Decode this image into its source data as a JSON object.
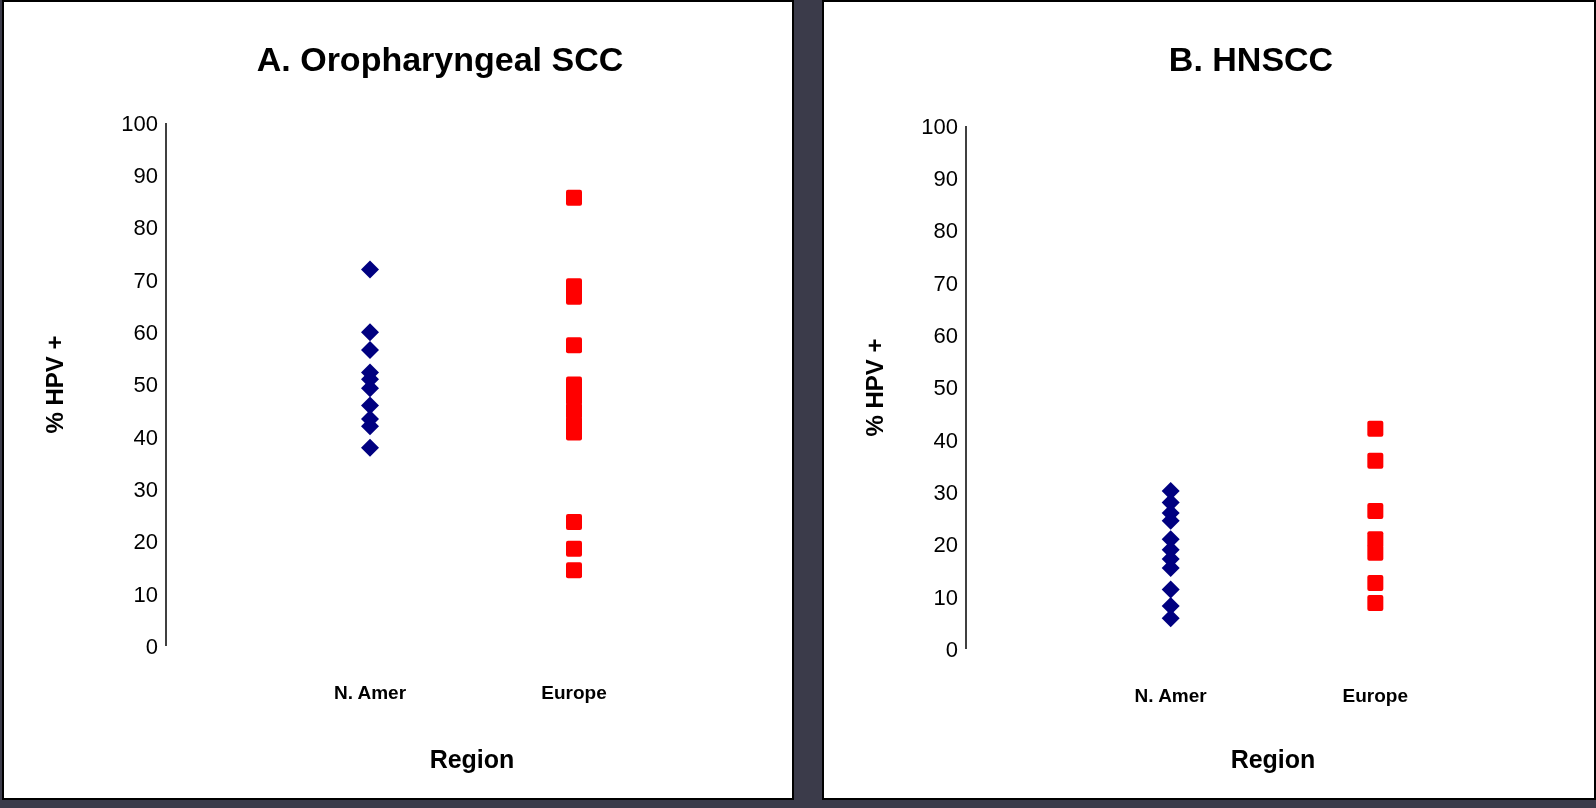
{
  "chart_data": [
    {
      "type": "scatter",
      "title": "A. Oropharyngeal SCC",
      "xlabel": "Region",
      "ylabel": "% HPV +",
      "categories": [
        "N. Amer",
        "Europe"
      ],
      "ylim": [
        0,
        100
      ],
      "yticks": [
        0,
        10,
        20,
        30,
        40,
        50,
        60,
        70,
        80,
        90,
        100
      ],
      "series": [
        {
          "color": "#000080",
          "marker": "diamond",
          "x": [
            "N. Amer",
            "N. Amer",
            "N. Amer",
            "N. Amer",
            "N. Amer",
            "N. Amer",
            "N. Amer",
            "N. Amer",
            "N. Amer",
            "N. Amer"
          ],
          "values": [
            72,
            60,
            56.6,
            52.3,
            51,
            49.3,
            46,
            43.4,
            42,
            37.9
          ]
        },
        {
          "color": "#ff0000",
          "marker": "square",
          "x": [
            "Europe",
            "Europe",
            "Europe",
            "Europe",
            "Europe",
            "Europe",
            "Europe",
            "Europe",
            "Europe",
            "Europe",
            "Europe",
            "Europe"
          ],
          "values": [
            85.7,
            68.8,
            66.8,
            57.5,
            50,
            47.6,
            45,
            42.4,
            40.8,
            23.7,
            18.6,
            14.5
          ]
        }
      ]
    },
    {
      "type": "scatter",
      "title": "B. HNSCC",
      "xlabel": "Region",
      "ylabel": "% HPV +",
      "categories": [
        "N. Amer",
        "Europe"
      ],
      "ylim": [
        0,
        100
      ],
      "yticks": [
        0,
        10,
        20,
        30,
        40,
        50,
        60,
        70,
        80,
        90,
        100
      ],
      "series": [
        {
          "color": "#000080",
          "marker": "diamond",
          "x": [
            "N. Amer",
            "N. Amer",
            "N. Amer",
            "N. Amer",
            "N. Amer",
            "N. Amer",
            "N. Amer",
            "N. Amer",
            "N. Amer",
            "N. Amer",
            "N. Amer"
          ],
          "values": [
            30.2,
            28,
            26,
            24.5,
            21,
            19,
            17.2,
            15.5,
            11.4,
            8.2,
            5.9
          ]
        },
        {
          "color": "#ff0000",
          "marker": "square",
          "x": [
            "Europe",
            "Europe",
            "Europe",
            "Europe",
            "Europe",
            "Europe",
            "Europe"
          ],
          "values": [
            42.1,
            36,
            26.4,
            21,
            18.4,
            12.6,
            8.8
          ]
        }
      ]
    }
  ]
}
